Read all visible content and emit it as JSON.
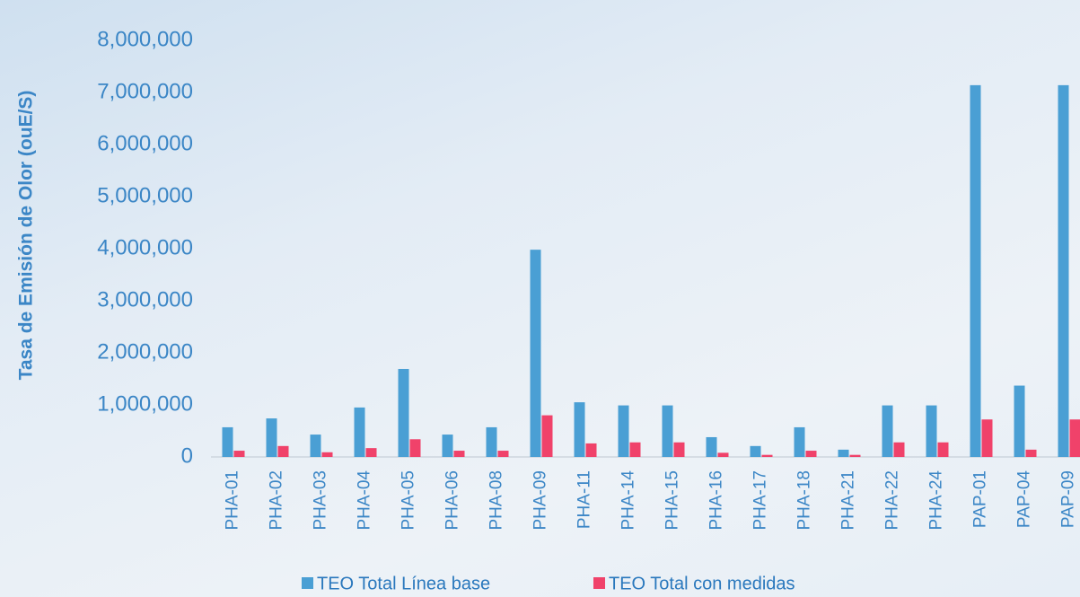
{
  "chart_data": {
    "type": "bar",
    "ylabel": "Tasa de Emisión de Olor (ouE/S)",
    "categories": [
      "PHA-01",
      "PHA-02",
      "PHA-03",
      "PHA-04",
      "PHA-05",
      "PHA-06",
      "PHA-08",
      "PHA-09",
      "PHA-11",
      "PHA-14",
      "PHA-15",
      "PHA-16",
      "PHA-17",
      "PHA-18",
      "PHA-21",
      "PHA-22",
      "PHA-24",
      "PAP-01",
      "PAP-04",
      "PAP-09"
    ],
    "series": [
      {
        "name": "TEO Total Línea base",
        "color": "#4a9fd4",
        "values": [
          570000,
          740000,
          430000,
          950000,
          1690000,
          430000,
          570000,
          3980000,
          1050000,
          990000,
          990000,
          380000,
          210000,
          570000,
          140000,
          990000,
          990000,
          7140000,
          1370000,
          7140000
        ]
      },
      {
        "name": "TEO Total con medidas",
        "color": "#f0426a",
        "values": [
          120000,
          210000,
          90000,
          170000,
          340000,
          120000,
          120000,
          800000,
          260000,
          280000,
          280000,
          80000,
          40000,
          120000,
          40000,
          280000,
          280000,
          720000,
          140000,
          720000
        ]
      }
    ],
    "ylim": [
      0,
      8000000
    ],
    "yticks": [
      0,
      {
        "value": 1000000,
        "label": "1,000,000"
      },
      {
        "value": 2000000,
        "label": "2,000,000"
      },
      {
        "value": 3000000,
        "label": "3,000,000"
      },
      {
        "value": 4000000,
        "label": "4,000,000"
      },
      {
        "value": 5000000,
        "label": "5,000,000"
      },
      {
        "value": 6000000,
        "label": "6,000,000"
      },
      {
        "value": 7000000,
        "label": "7,000,000"
      },
      {
        "value": 8000000,
        "label": "8,000,000"
      }
    ],
    "legend": "bottom"
  }
}
